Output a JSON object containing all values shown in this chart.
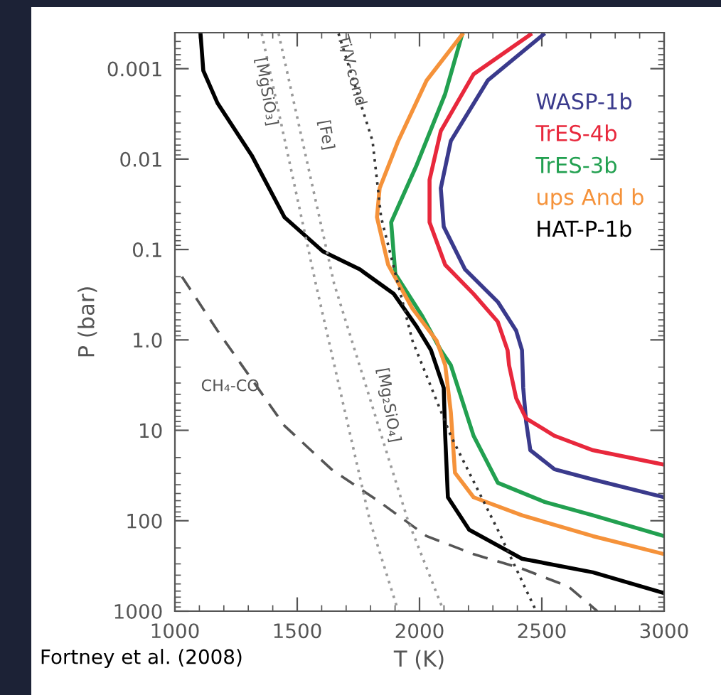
{
  "chart_data": {
    "type": "line",
    "xlabel": "T (K)",
    "ylabel": "P (bar)",
    "log": "y",
    "xlim": [
      1000,
      3000
    ],
    "ylim": [
      1000,
      0.0004
    ],
    "xticks": [
      1000,
      1500,
      2000,
      2500,
      3000
    ],
    "yticks": [
      0.001,
      0.01,
      0.1,
      {
        "value": 1,
        "label": "1.0"
      },
      10,
      100,
      1000
    ],
    "grid": false,
    "legend": "top right",
    "series": [
      {
        "name": "WASP-1b",
        "color": "#3a3a8c",
        "line_style": "solid",
        "x": [
          2506,
          2279,
          2128,
          2087,
          2099,
          2186,
          2320,
          2395,
          2419,
          2424,
          2436,
          2453,
          2552,
          2709,
          3000
        ],
        "values": [
          0.00042,
          0.00135,
          0.0063,
          0.021,
          0.056,
          0.166,
          0.38,
          0.79,
          1.3,
          3.4,
          8.1,
          16.6,
          27,
          35,
          55
        ]
      },
      {
        "name": "TrES-4b",
        "color": "#e8283c",
        "line_style": "solid",
        "x": [
          2453,
          2221,
          2087,
          2041,
          2041,
          2105,
          2221,
          2320,
          2360,
          2366,
          2395,
          2436,
          2552,
          2709,
          3000
        ],
        "values": [
          0.00042,
          0.00115,
          0.0049,
          0.017,
          0.05,
          0.148,
          0.31,
          0.63,
          1.3,
          1.9,
          4.4,
          7.4,
          11.5,
          16.6,
          24
        ]
      },
      {
        "name": "TrES-3b",
        "color": "#22a050",
        "line_style": "solid",
        "x": [
          2174,
          2105,
          1988,
          1884,
          1901,
          2012,
          2087,
          2128,
          2221,
          2320,
          2512,
          2709,
          3000
        ],
        "values": [
          0.00042,
          0.0019,
          0.0117,
          0.05,
          0.186,
          0.55,
          1.3,
          1.9,
          11.5,
          38,
          62,
          87,
          148
        ]
      },
      {
        "name": "ups And b",
        "color": "#f5923a",
        "line_style": "solid",
        "x": [
          2174,
          2029,
          1913,
          1837,
          1826,
          1872,
          1971,
          2070,
          2105,
          2128,
          2145,
          2221,
          2419,
          2709,
          3000
        ],
        "values": [
          0.00042,
          0.00135,
          0.0063,
          0.021,
          0.044,
          0.148,
          0.45,
          1.02,
          1.9,
          6.3,
          29.5,
          55,
          87,
          148,
          234
        ]
      },
      {
        "name": "HAT-P-1b",
        "color": "#000000",
        "line_style": "solid",
        "x": [
          1105,
          1116,
          1174,
          1314,
          1448,
          1605,
          1756,
          1895,
          1988,
          2047,
          2099,
          2105,
          2116,
          2203,
          2419,
          2709,
          3000
        ],
        "values": [
          0.00042,
          0.00105,
          0.0024,
          0.0091,
          0.044,
          0.105,
          0.166,
          0.31,
          0.71,
          1.3,
          3.4,
          11.5,
          55,
          126,
          263,
          372,
          631
        ]
      },
      {
        "color": "#555555",
        "line_style": "dashed",
        "x": [
          1029,
          1174,
          1448,
          1640,
          1837,
          2029,
          2221,
          2419,
          2610,
          2727
        ],
        "values": [
          0.2,
          0.79,
          8.9,
          27,
          62,
          148,
          234,
          339,
          537,
          1000
        ]
      },
      {
        "color": "#9a9a9a",
        "line_style": "dotted",
        "x": [
          1355,
          1576,
          1797,
          1913
        ],
        "values": [
          0.00041,
          0.24,
          100,
          1000
        ]
      },
      {
        "color": "#9a9a9a",
        "line_style": "dotted",
        "x": [
          1424,
          1651,
          1953,
          2099
        ],
        "values": [
          0.00041,
          0.24,
          100,
          1000
        ]
      },
      {
        "color": "#333333",
        "line_style": "dotted",
        "x": [
          1669,
          1808,
          1843,
          1971,
          2128,
          2320,
          2477
        ],
        "values": [
          0.00041,
          0.0063,
          0.044,
          1.02,
          11.5,
          126,
          1000
        ]
      }
    ],
    "annotations": [
      {
        "text": "[MgSiO₃]",
        "x": 1372,
        "y": 0.0018
      },
      "[Fe]",
      {
        "text": "Ti/V-cond",
        "x": 1721,
        "y": 0.00105
      },
      "[Mg₂SiO₄]",
      "CH₄-CO",
      "Fortney et al. (2008)"
    ]
  }
}
